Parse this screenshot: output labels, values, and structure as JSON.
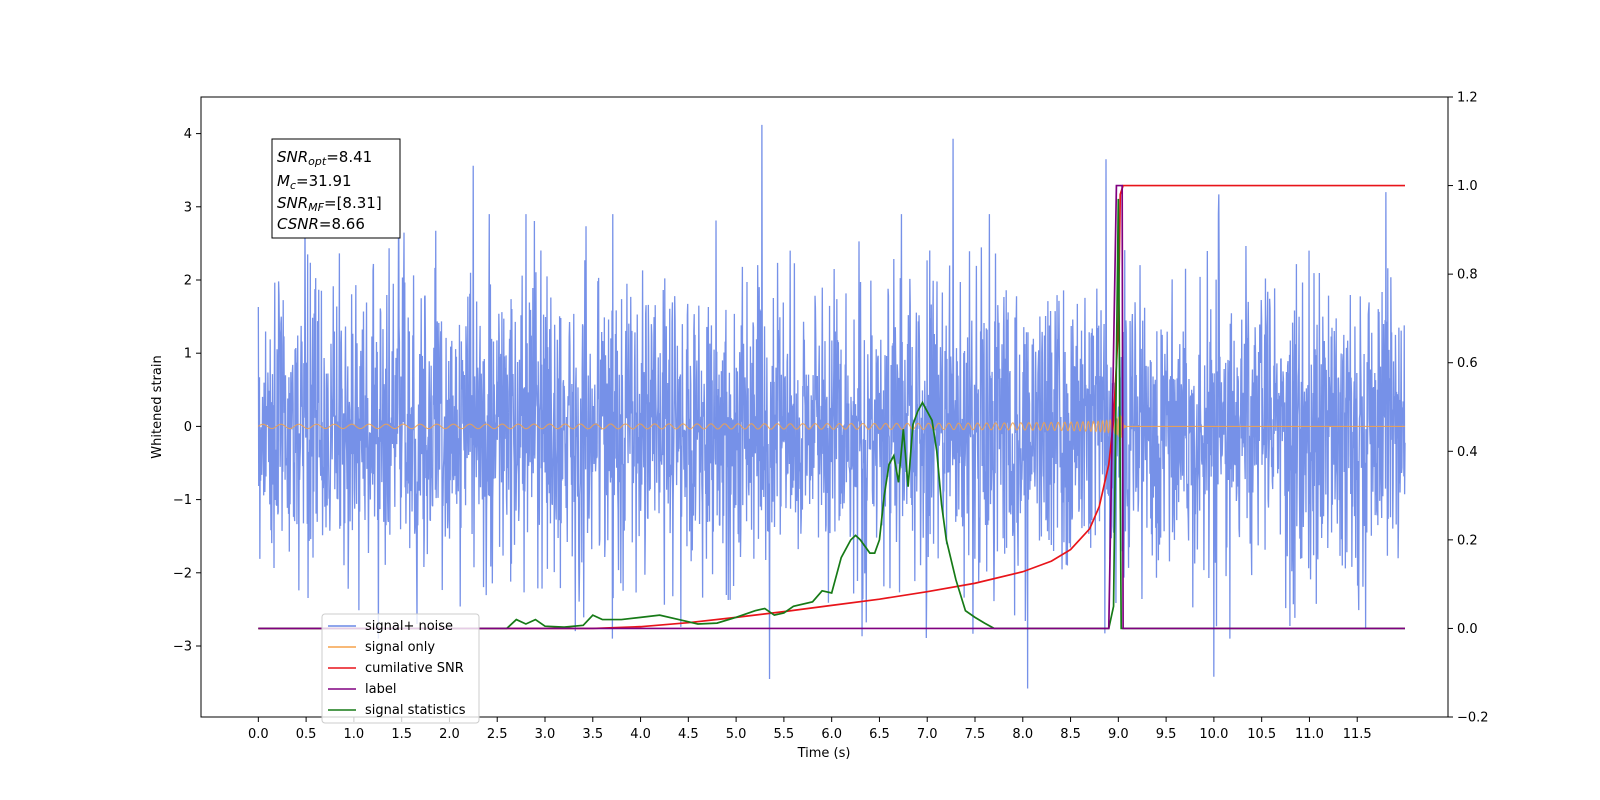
{
  "chart_data": {
    "type": "line",
    "xlabel": "Time (s)",
    "ylabel": "Whitened strain",
    "xlim": [
      -0.6,
      12.45
    ],
    "ylim": [
      -3.97,
      4.5
    ],
    "y2lim": [
      -0.2,
      1.2
    ],
    "grid": false,
    "legend_position": "bottom-left",
    "x_ticks": [
      "0.0",
      "0.5",
      "1.0",
      "1.5",
      "2.0",
      "2.5",
      "3.0",
      "3.5",
      "4.0",
      "4.5",
      "5.0",
      "5.5",
      "6.0",
      "6.5",
      "7.0",
      "7.5",
      "8.0",
      "8.5",
      "9.0",
      "9.5",
      "10.0",
      "10.5",
      "11.0",
      "11.5"
    ],
    "y_ticks": [
      "−3",
      "−2",
      "−1",
      "0",
      "1",
      "2",
      "3",
      "4"
    ],
    "y2_ticks": [
      "−0.2",
      "0.0",
      "0.2",
      "0.4",
      "0.6",
      "0.8",
      "1.0",
      "1.2"
    ],
    "annotation": {
      "snr_opt_prefix": "SNR",
      "snr_opt_sub": "opt",
      "snr_opt_value": "=8.41",
      "mc_prefix": "M",
      "mc_sub": "c",
      "mc_value": "=31.91",
      "snr_mf_prefix": "SNR",
      "snr_mf_sub": "MF",
      "snr_mf_value": "=[8.31]",
      "csnr_prefix": "CSNR",
      "csnr_value": "=8.66"
    },
    "series": [
      {
        "name": "signal+ noise",
        "color": "#6a88e6",
        "axis": "left",
        "kind": "noise",
        "x_range": [
          0.0,
          12.0
        ],
        "std": 1.0,
        "peaks": [
          [
            5.27,
            4.12
          ],
          [
            7.27,
            3.93
          ],
          [
            8.87,
            3.65
          ],
          [
            2.25,
            3.56
          ],
          [
            1.47,
            3.4
          ],
          [
            10.05,
            3.17
          ],
          [
            11.8,
            3.2
          ],
          [
            5.35,
            -3.45
          ],
          [
            8.05,
            -3.58
          ],
          [
            10.0,
            -3.42
          ]
        ]
      },
      {
        "name": "signal only",
        "color": "#f5a24a",
        "axis": "left",
        "kind": "chirp",
        "t_merger": 9.02,
        "x_range": [
          0.0,
          12.0
        ]
      },
      {
        "name": "cumilative SNR",
        "color": "#e8141a",
        "axis": "right",
        "x": [
          0.0,
          3.5,
          4.0,
          4.5,
          5.0,
          5.5,
          6.0,
          6.5,
          7.0,
          7.5,
          8.0,
          8.3,
          8.5,
          8.7,
          8.8,
          8.9,
          8.95,
          9.0,
          9.02,
          9.05,
          12.0
        ],
        "values": [
          0.0,
          0.0,
          0.004,
          0.013,
          0.025,
          0.038,
          0.052,
          0.066,
          0.083,
          0.102,
          0.128,
          0.152,
          0.178,
          0.225,
          0.275,
          0.37,
          0.47,
          0.68,
          0.98,
          1.0,
          1.0
        ]
      },
      {
        "name": "label",
        "color": "#800080",
        "axis": "right",
        "x": [
          0.0,
          8.9,
          8.98,
          9.04,
          9.05,
          12.0
        ],
        "values": [
          0.0,
          0.0,
          1.0,
          1.0,
          0.0,
          0.0
        ]
      },
      {
        "name": "signal statistics",
        "color": "#167a16",
        "axis": "right",
        "x": [
          0.0,
          2.4,
          2.6,
          2.7,
          2.8,
          2.9,
          3.0,
          3.2,
          3.4,
          3.5,
          3.6,
          3.8,
          4.0,
          4.2,
          4.4,
          4.6,
          4.8,
          5.0,
          5.2,
          5.3,
          5.4,
          5.5,
          5.6,
          5.8,
          5.9,
          6.0,
          6.05,
          6.1,
          6.2,
          6.25,
          6.3,
          6.4,
          6.45,
          6.5,
          6.55,
          6.6,
          6.65,
          6.7,
          6.75,
          6.8,
          6.85,
          6.9,
          6.95,
          7.0,
          7.05,
          7.1,
          7.15,
          7.2,
          7.3,
          7.4,
          7.5,
          7.6,
          7.7,
          7.75,
          8.9,
          8.95,
          9.0,
          9.03,
          9.05,
          12.0
        ],
        "values": [
          0.0,
          0.0,
          0.0,
          0.02,
          0.01,
          0.02,
          0.005,
          0.003,
          0.007,
          0.03,
          0.02,
          0.02,
          0.025,
          0.03,
          0.02,
          0.01,
          0.012,
          0.025,
          0.04,
          0.045,
          0.03,
          0.035,
          0.05,
          0.06,
          0.085,
          0.08,
          0.12,
          0.16,
          0.2,
          0.21,
          0.2,
          0.17,
          0.17,
          0.2,
          0.3,
          0.37,
          0.39,
          0.33,
          0.45,
          0.32,
          0.46,
          0.49,
          0.51,
          0.49,
          0.47,
          0.4,
          0.28,
          0.2,
          0.11,
          0.04,
          0.025,
          0.012,
          0.0,
          0.0,
          0.0,
          0.05,
          0.97,
          0.0,
          0.0,
          0.0
        ]
      }
    ]
  }
}
